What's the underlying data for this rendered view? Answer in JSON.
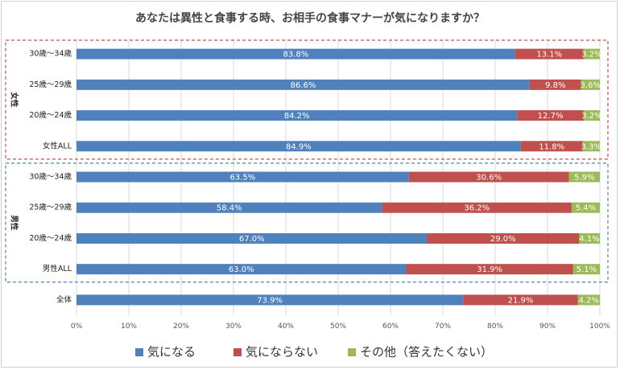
{
  "chart_data": {
    "type": "bar",
    "orientation": "horizontal",
    "stacked": true,
    "title": "あなたは異性と食事する時、お相手の食事マナーが気になりますか？",
    "xlim": [
      0,
      100
    ],
    "xticks": [
      "0%",
      "10%",
      "20%",
      "30%",
      "40%",
      "50%",
      "60%",
      "70%",
      "80%",
      "90%",
      "100%"
    ],
    "categories": [
      "30歳〜34歳",
      "25歳〜29歳",
      "20歳〜24歳",
      "女性ALL",
      "30歳〜34歳",
      "25歳〜29歳",
      "20歳〜24歳",
      "男性ALL",
      "全体"
    ],
    "groups": [
      {
        "label": "女性",
        "start": 0,
        "end": 3,
        "color": "#c0504d"
      },
      {
        "label": "男性",
        "start": 4,
        "end": 7,
        "color": "#4f81bd"
      }
    ],
    "series": [
      {
        "name": "気になる",
        "color": "#4f81bd",
        "values": [
          83.8,
          86.6,
          84.2,
          84.9,
          63.5,
          58.4,
          67.0,
          63.0,
          73.9
        ],
        "labels": [
          "83.8%",
          "86.6%",
          "84.2%",
          "84.9%",
          "63.5%",
          "58.4%",
          "67.0%",
          "63.0%",
          "73.9%"
        ]
      },
      {
        "name": "気にならない",
        "color": "#c0504d",
        "values": [
          13.1,
          9.8,
          12.7,
          11.8,
          30.6,
          36.2,
          29.0,
          31.9,
          21.9
        ],
        "labels": [
          "13.1%",
          "9.8%",
          "12.7%",
          "11.8%",
          "30.6%",
          "36.2%",
          "29.0%",
          "31.9%",
          "21.9%"
        ]
      },
      {
        "name": "その他（答えたくない）",
        "color": "#9bbb59",
        "values": [
          3.2,
          3.6,
          3.2,
          3.3,
          5.9,
          5.4,
          4.1,
          5.1,
          4.2
        ],
        "labels": [
          "3.2%",
          "3.6%",
          "3.2%",
          "3.3%",
          "5.9%",
          "5.4%",
          "4.1%",
          "5.1%",
          "4.2%"
        ]
      }
    ],
    "legend": "bottom",
    "grid": true
  }
}
